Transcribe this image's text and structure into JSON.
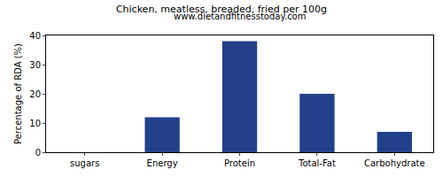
{
  "chart_data": {
    "type": "bar",
    "title": "Chicken, meatless, breaded, fried per 100g",
    "subtitle": "www.dietandfitnesstoday.com",
    "y_label": "Percentage of RDA (%)",
    "categories": [
      "sugars",
      "Energy",
      "Protein",
      "Total-Fat",
      "Carbohydrate"
    ],
    "values": [
      0,
      12,
      38,
      20,
      7
    ],
    "color": "#22418a",
    "ylim": [
      0,
      40
    ],
    "yticks": [
      0,
      10,
      20,
      30,
      40
    ],
    "grid": false
  }
}
